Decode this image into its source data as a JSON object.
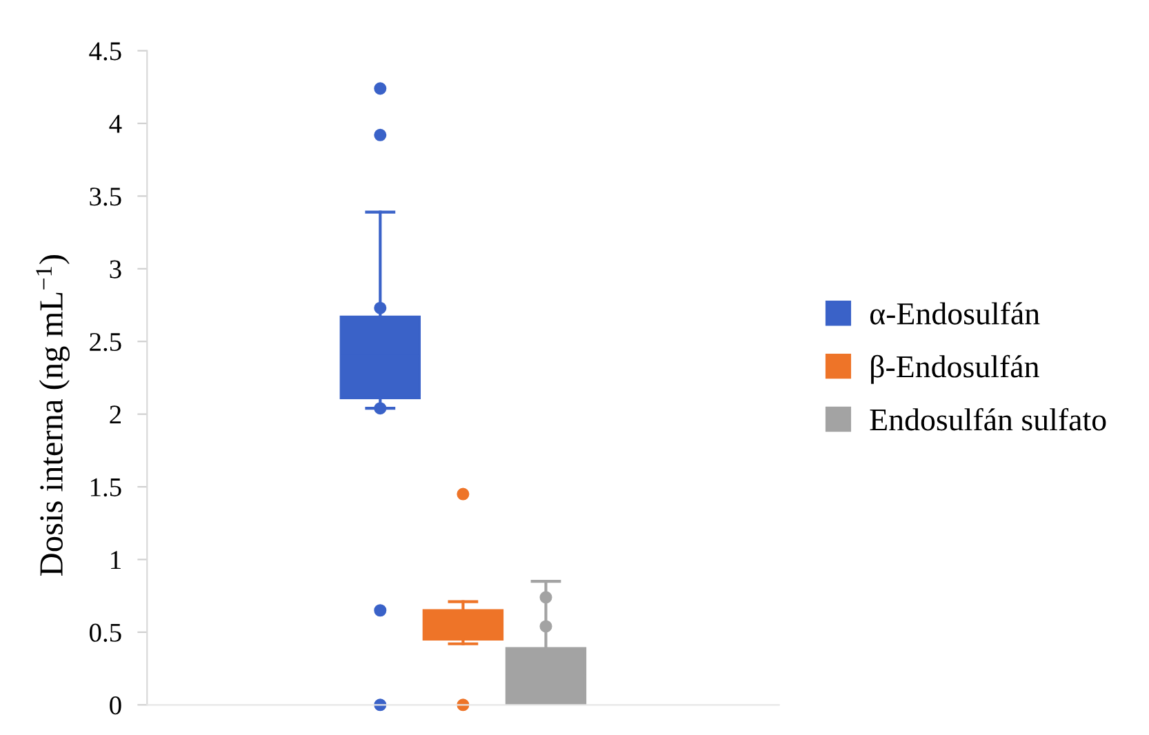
{
  "chart_data": {
    "type": "box",
    "ylabel": "Dosis interna (ng mL$^{−1}$)",
    "categories": [
      null
    ],
    "series": [
      {
        "name": "α-Endosulfán",
        "color": "#3a62c8",
        "boxes": [
          {
            "low": 2.04,
            "q1": 2.11,
            "median": 2.4,
            "q3": 2.67,
            "high": 3.39,
            "outliers": [
              4.24,
              3.92,
              2.73,
              2.04,
              0.65,
              0
            ]
          }
        ]
      },
      {
        "name": "β-Endosulfán",
        "color": "#ee7428",
        "boxes": [
          {
            "low": 0.42,
            "q1": 0.45,
            "median": 0.55,
            "q3": 0.65,
            "high": 0.71,
            "outliers": [
              1.45,
              0
            ]
          }
        ]
      },
      {
        "name": "Endosulfán sulfato",
        "color": "#a3a3a3",
        "boxes": [
          {
            "low": 0,
            "q1": 0,
            "median": 0.2,
            "q3": 0.39,
            "high": 0.85,
            "outliers": [
              0.74,
              0.54
            ]
          }
        ]
      }
    ],
    "ylim": [
      0,
      4.5
    ],
    "yticks": [
      0,
      0.5,
      1,
      1.5,
      2,
      2.5,
      3,
      3.5,
      4,
      4.5
    ],
    "tick_labels": "y",
    "legend": "right",
    "marker": "circle"
  }
}
